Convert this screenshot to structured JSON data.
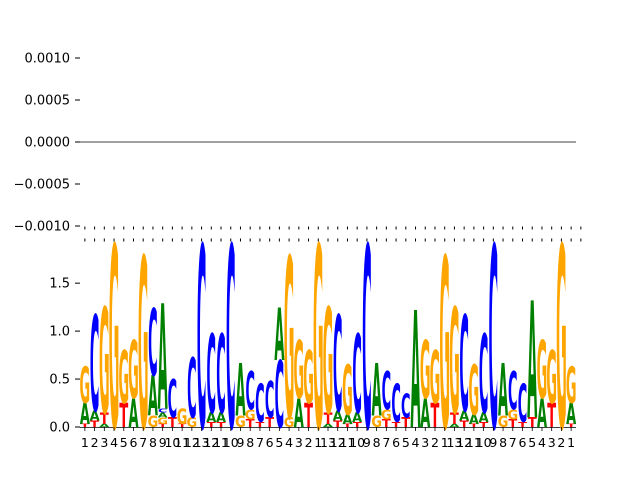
{
  "chart_data": [
    {
      "type": "line",
      "panel": "top",
      "ylim": [
        -0.00125,
        0.00125
      ],
      "yticks": [
        "0.0010",
        "0.0005",
        "0.0000",
        "−0.0005",
        "−0.0010"
      ],
      "ytick_values": [
        0.001,
        0.0005,
        0.0,
        -0.0005,
        -0.001
      ],
      "series": [
        {
          "values": [
            0.0,
            0.0
          ]
        }
      ]
    },
    {
      "type": "bar",
      "panel": "bottom",
      "subtype": "sequence-logo",
      "ylim": [
        0,
        1.95
      ],
      "yticks": [
        "0.0",
        "0.5",
        "1.0",
        "1.5"
      ],
      "ytick_values": [
        0.0,
        0.5,
        1.0,
        1.5
      ],
      "colors": {
        "A": "#008000",
        "C": "#0000ff",
        "G": "#ffa500",
        "T": "#ff0000"
      },
      "categories": [
        "1",
        "2",
        "3",
        "4",
        "5",
        "6",
        "7",
        "8",
        "9",
        "10",
        "11",
        "12",
        "13",
        "12",
        "11",
        "10",
        "9",
        "8",
        "7",
        "6",
        "5",
        "4",
        "3",
        "2",
        "1",
        "13",
        "12",
        "11",
        "10",
        "9",
        "8",
        "7",
        "6",
        "5",
        "4",
        "3",
        "2",
        "1",
        "13",
        "12",
        "11",
        "10",
        "9",
        "8",
        "7",
        "6",
        "5",
        "4",
        "3",
        "2",
        "1"
      ],
      "stacks": [
        [
          [
            "T",
            0.03
          ],
          [
            "A",
            0.22
          ],
          [
            "G",
            0.38
          ]
        ],
        [
          [
            "T",
            0.07
          ],
          [
            "A",
            0.1
          ],
          [
            "C",
            1.0
          ]
        ],
        [
          [
            "A",
            0.03
          ],
          [
            "T",
            0.12
          ],
          [
            "G",
            1.1
          ]
        ],
        [
          [
            "G",
            1.9
          ]
        ],
        [
          [
            "T",
            0.25
          ],
          [
            "G",
            0.55
          ]
        ],
        [
          [
            "A",
            0.3
          ],
          [
            "G",
            0.6
          ]
        ],
        [
          [
            "G",
            1.78
          ]
        ],
        [
          [
            "G",
            0.12
          ],
          [
            "A",
            0.42
          ],
          [
            "C",
            0.7
          ]
        ],
        [
          [
            "T",
            0.03
          ],
          [
            "G",
            0.07
          ],
          [
            "A",
            0.05
          ],
          [
            "C",
            0.04
          ],
          [
            "A",
            1.1
          ]
        ],
        [
          [
            "T",
            0.1
          ],
          [
            "C",
            0.4
          ]
        ],
        [
          [
            "T",
            0.03
          ],
          [
            "G",
            0.16
          ]
        ],
        [
          [
            "G",
            0.1
          ],
          [
            "C",
            0.62
          ]
        ],
        [
          [
            "C",
            1.9
          ]
        ],
        [
          [
            "T",
            0.05
          ],
          [
            "A",
            0.1
          ],
          [
            "C",
            0.82
          ]
        ],
        [
          [
            "T",
            0.05
          ],
          [
            "A",
            0.1
          ],
          [
            "C",
            0.82
          ]
        ],
        [
          [
            "C",
            1.9
          ]
        ],
        [
          [
            "G",
            0.12
          ],
          [
            "A",
            0.55
          ]
        ],
        [
          [
            "T",
            0.08
          ],
          [
            "G",
            0.1
          ],
          [
            "C",
            0.4
          ]
        ],
        [
          [
            "T",
            0.05
          ],
          [
            "C",
            0.4
          ]
        ],
        [
          [
            "T",
            0.1
          ],
          [
            "C",
            0.38
          ]
        ],
        [
          [
            "C",
            0.7
          ],
          [
            "A",
            0.55
          ]
        ],
        [
          [
            "G",
            0.1
          ],
          [
            "G",
            1.68
          ]
        ],
        [
          [
            "A",
            0.3
          ],
          [
            "G",
            0.6
          ]
        ],
        [
          [
            "T",
            0.25
          ],
          [
            "G",
            0.55
          ]
        ],
        [
          [
            "G",
            1.9
          ]
        ],
        [
          [
            "A",
            0.03
          ],
          [
            "T",
            0.12
          ],
          [
            "G",
            1.1
          ]
        ],
        [
          [
            "T",
            0.07
          ],
          [
            "A",
            0.1
          ],
          [
            "C",
            1.0
          ]
        ],
        [
          [
            "T",
            0.03
          ],
          [
            "A",
            0.1
          ],
          [
            "G",
            0.52
          ]
        ],
        [
          [
            "T",
            0.05
          ],
          [
            "A",
            0.1
          ],
          [
            "C",
            0.82
          ]
        ],
        [
          [
            "C",
            1.9
          ]
        ],
        [
          [
            "G",
            0.12
          ],
          [
            "A",
            0.55
          ]
        ],
        [
          [
            "T",
            0.08
          ],
          [
            "G",
            0.1
          ],
          [
            "C",
            0.4
          ]
        ],
        [
          [
            "T",
            0.05
          ],
          [
            "C",
            0.4
          ]
        ],
        [
          [
            "T",
            0.1
          ],
          [
            "C",
            0.25
          ]
        ],
        [
          [
            "A",
            1.22
          ]
        ],
        [
          [
            "A",
            0.3
          ],
          [
            "G",
            0.6
          ]
        ],
        [
          [
            "T",
            0.25
          ],
          [
            "G",
            0.55
          ]
        ],
        [
          [
            "G",
            1.78
          ]
        ],
        [
          [
            "A",
            0.03
          ],
          [
            "T",
            0.12
          ],
          [
            "G",
            1.1
          ]
        ],
        [
          [
            "T",
            0.07
          ],
          [
            "A",
            0.1
          ],
          [
            "C",
            1.0
          ]
        ],
        [
          [
            "T",
            0.03
          ],
          [
            "A",
            0.1
          ],
          [
            "G",
            0.52
          ]
        ],
        [
          [
            "T",
            0.05
          ],
          [
            "A",
            0.1
          ],
          [
            "C",
            0.82
          ]
        ],
        [
          [
            "C",
            1.9
          ]
        ],
        [
          [
            "G",
            0.12
          ],
          [
            "A",
            0.55
          ]
        ],
        [
          [
            "T",
            0.08
          ],
          [
            "G",
            0.1
          ],
          [
            "C",
            0.4
          ]
        ],
        [
          [
            "T",
            0.05
          ],
          [
            "C",
            0.4
          ]
        ],
        [
          [
            "T",
            0.1
          ],
          [
            "A",
            1.22
          ]
        ],
        [
          [
            "A",
            0.3
          ],
          [
            "G",
            0.6
          ]
        ],
        [
          [
            "T",
            0.25
          ],
          [
            "G",
            0.55
          ]
        ],
        [
          [
            "G",
            1.9
          ]
        ],
        [
          [
            "T",
            0.03
          ],
          [
            "A",
            0.22
          ],
          [
            "G",
            0.38
          ]
        ]
      ]
    }
  ]
}
